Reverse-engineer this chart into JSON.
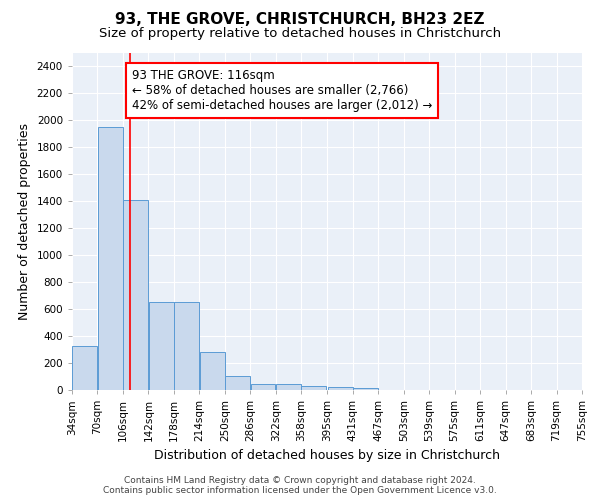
{
  "title": "93, THE GROVE, CHRISTCHURCH, BH23 2EZ",
  "subtitle": "Size of property relative to detached houses in Christchurch",
  "xlabel": "Distribution of detached houses by size in Christchurch",
  "ylabel": "Number of detached properties",
  "bin_edges": [
    34,
    70,
    106,
    142,
    178,
    214,
    250,
    286,
    322,
    358,
    395,
    431,
    467,
    503,
    539,
    575,
    611,
    647,
    683,
    719,
    755
  ],
  "bar_heights": [
    325,
    1950,
    1410,
    650,
    650,
    280,
    105,
    45,
    45,
    30,
    20,
    15,
    0,
    0,
    0,
    0,
    0,
    0,
    0,
    0
  ],
  "bar_color": "#c9d9ed",
  "bar_edge_color": "#5b9bd5",
  "red_line_x": 116,
  "annotation_line1": "93 THE GROVE: 116sqm",
  "annotation_line2": "← 58% of detached houses are smaller (2,766)",
  "annotation_line3": "42% of semi-detached houses are larger (2,012) →",
  "annotation_box_color": "white",
  "annotation_box_edge_color": "red",
  "ylim": [
    0,
    2500
  ],
  "yticks": [
    0,
    200,
    400,
    600,
    800,
    1000,
    1200,
    1400,
    1600,
    1800,
    2000,
    2200,
    2400
  ],
  "background_color": "#eaf0f8",
  "grid_color": "white",
  "footer_line1": "Contains HM Land Registry data © Crown copyright and database right 2024.",
  "footer_line2": "Contains public sector information licensed under the Open Government Licence v3.0.",
  "title_fontsize": 11,
  "subtitle_fontsize": 9.5,
  "axis_label_fontsize": 9,
  "tick_fontsize": 7.5,
  "annotation_fontsize": 8.5,
  "footer_fontsize": 6.5
}
